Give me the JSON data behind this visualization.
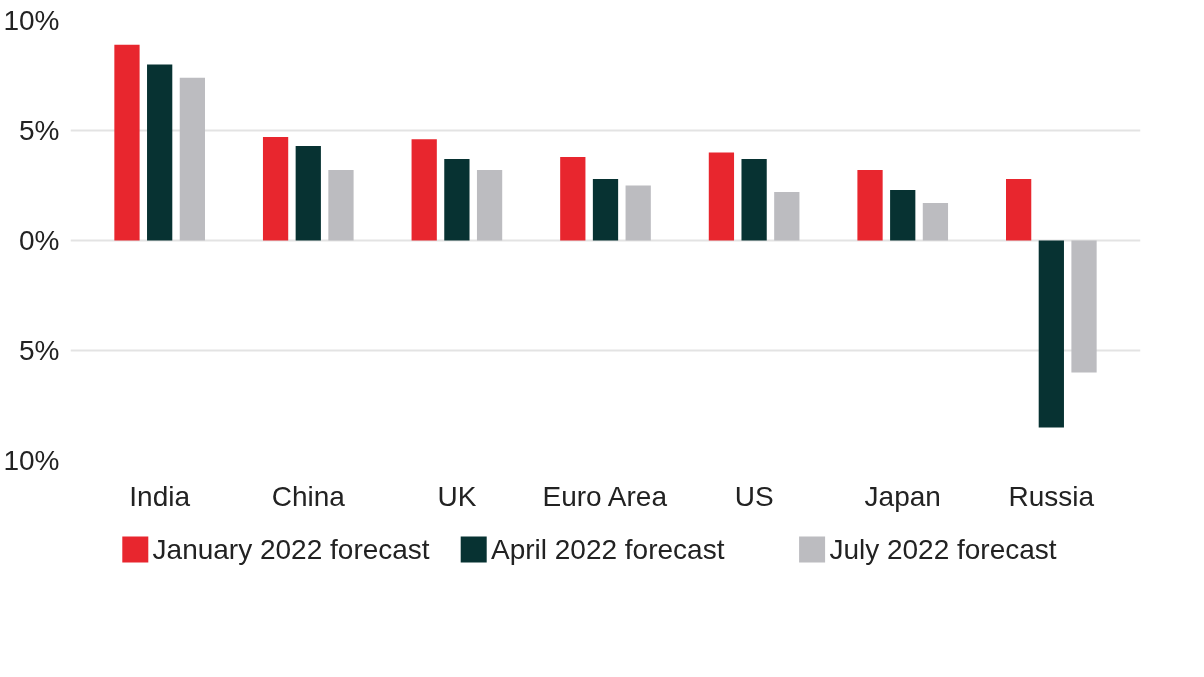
{
  "chart_data": {
    "type": "bar",
    "categories": [
      "India",
      "China",
      "UK",
      "Euro Area",
      "US",
      "Japan",
      "Russia"
    ],
    "series": [
      {
        "name": "January 2022 forecast",
        "color": "#e8262e",
        "values": [
          8.9,
          4.7,
          4.6,
          3.8,
          4.0,
          3.2,
          2.8
        ]
      },
      {
        "name": "April 2022 forecast",
        "color": "#073232",
        "values": [
          8.0,
          4.3,
          3.7,
          2.8,
          3.7,
          2.3,
          -8.5
        ]
      },
      {
        "name": "July 2022 forecast",
        "color": "#bcbcc0",
        "values": [
          7.4,
          3.2,
          3.2,
          2.5,
          2.2,
          1.7,
          -6.0
        ]
      }
    ],
    "ylim": [
      -10,
      10
    ],
    "yticks": [
      {
        "value": -10,
        "label": "10%"
      },
      {
        "value": -5,
        "label": "5%"
      },
      {
        "value": 0,
        "label": "0%"
      },
      {
        "value": 5,
        "label": "5%"
      },
      {
        "value": 10,
        "label": "10%"
      }
    ],
    "grid": "y",
    "legend": "bottom"
  }
}
